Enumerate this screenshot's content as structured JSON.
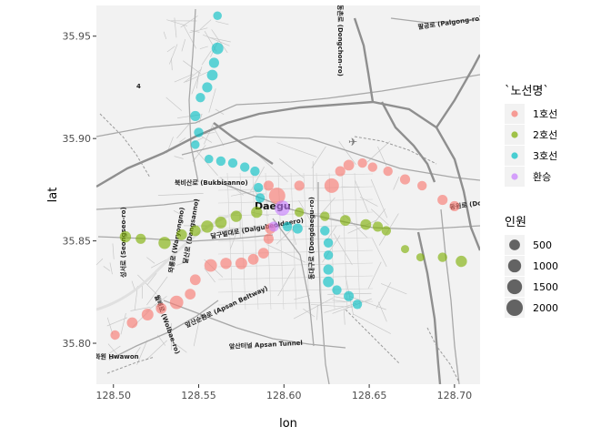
{
  "chart_data": {
    "type": "scatter",
    "xlabel": "lon",
    "ylabel": "lat",
    "xlim": [
      128.49,
      128.715
    ],
    "ylim": [
      35.78,
      35.965
    ],
    "x_ticks": [
      "128.50",
      "128.55",
      "128.60",
      "128.65",
      "128.70"
    ],
    "x_tick_values": [
      128.5,
      128.55,
      128.6,
      128.65,
      128.7
    ],
    "y_ticks": [
      "35.80",
      "35.85",
      "35.90",
      "35.95"
    ],
    "y_tick_values": [
      35.8,
      35.85,
      35.9,
      35.95
    ],
    "grid": false,
    "legend_placement": "right",
    "color_legend": {
      "title": "`노선명`",
      "entries": [
        {
          "label": "1호선",
          "color": "#F8766D"
        },
        {
          "label": "2호선",
          "color": "#7CAE00"
        },
        {
          "label": "3호선",
          "color": "#00BFC4"
        },
        {
          "label": "환승",
          "color": "#C77CFF"
        }
      ]
    },
    "size_legend": {
      "title": "인원",
      "entries": [
        {
          "label": "500",
          "value": 500
        },
        {
          "label": "1000",
          "value": 1000
        },
        {
          "label": "1500",
          "value": 1500
        },
        {
          "label": "2000",
          "value": 2000
        }
      ]
    },
    "series": [
      {
        "name": "1호선",
        "color": "#F8766D",
        "points": [
          {
            "x": 128.501,
            "y": 35.804,
            "v": 300
          },
          {
            "x": 128.511,
            "y": 35.81,
            "v": 500
          },
          {
            "x": 128.52,
            "y": 35.814,
            "v": 700
          },
          {
            "x": 128.528,
            "y": 35.817,
            "v": 500
          },
          {
            "x": 128.537,
            "y": 35.82,
            "v": 1100
          },
          {
            "x": 128.545,
            "y": 35.824,
            "v": 500
          },
          {
            "x": 128.548,
            "y": 35.831,
            "v": 500
          },
          {
            "x": 128.557,
            "y": 35.838,
            "v": 900
          },
          {
            "x": 128.566,
            "y": 35.839,
            "v": 600
          },
          {
            "x": 128.575,
            "y": 35.839,
            "v": 700
          },
          {
            "x": 128.582,
            "y": 35.841,
            "v": 500
          },
          {
            "x": 128.588,
            "y": 35.844,
            "v": 500
          },
          {
            "x": 128.591,
            "y": 35.851,
            "v": 400
          },
          {
            "x": 128.592,
            "y": 35.856,
            "v": 500
          },
          {
            "x": 128.596,
            "y": 35.872,
            "v": 2000
          },
          {
            "x": 128.591,
            "y": 35.877,
            "v": 400
          },
          {
            "x": 128.609,
            "y": 35.877,
            "v": 400
          },
          {
            "x": 128.628,
            "y": 35.877,
            "v": 1400
          },
          {
            "x": 128.633,
            "y": 35.884,
            "v": 400
          },
          {
            "x": 128.638,
            "y": 35.887,
            "v": 500
          },
          {
            "x": 128.646,
            "y": 35.888,
            "v": 300
          },
          {
            "x": 128.652,
            "y": 35.886,
            "v": 300
          },
          {
            "x": 128.661,
            "y": 35.884,
            "v": 300
          },
          {
            "x": 128.671,
            "y": 35.88,
            "v": 400
          },
          {
            "x": 128.681,
            "y": 35.877,
            "v": 300
          },
          {
            "x": 128.693,
            "y": 35.87,
            "v": 400
          },
          {
            "x": 128.7,
            "y": 35.867,
            "v": 400
          }
        ]
      },
      {
        "name": "2호선",
        "color": "#7CAE00",
        "points": [
          {
            "x": 128.507,
            "y": 35.852,
            "v": 600
          },
          {
            "x": 128.516,
            "y": 35.851,
            "v": 400
          },
          {
            "x": 128.53,
            "y": 35.849,
            "v": 800
          },
          {
            "x": 128.54,
            "y": 35.853,
            "v": 500
          },
          {
            "x": 128.548,
            "y": 35.855,
            "v": 500
          },
          {
            "x": 128.555,
            "y": 35.857,
            "v": 800
          },
          {
            "x": 128.563,
            "y": 35.859,
            "v": 700
          },
          {
            "x": 128.572,
            "y": 35.862,
            "v": 600
          },
          {
            "x": 128.584,
            "y": 35.864,
            "v": 600
          },
          {
            "x": 128.609,
            "y": 35.864,
            "v": 300
          },
          {
            "x": 128.624,
            "y": 35.862,
            "v": 300
          },
          {
            "x": 128.636,
            "y": 35.86,
            "v": 500
          },
          {
            "x": 128.648,
            "y": 35.858,
            "v": 500
          },
          {
            "x": 128.655,
            "y": 35.857,
            "v": 400
          },
          {
            "x": 128.66,
            "y": 35.855,
            "v": 300
          },
          {
            "x": 128.671,
            "y": 35.846,
            "v": 150
          },
          {
            "x": 128.68,
            "y": 35.842,
            "v": 150
          },
          {
            "x": 128.693,
            "y": 35.842,
            "v": 300
          },
          {
            "x": 128.704,
            "y": 35.84,
            "v": 600
          }
        ]
      },
      {
        "name": "3호선",
        "color": "#00BFC4",
        "points": [
          {
            "x": 128.561,
            "y": 35.96,
            "v": 200
          },
          {
            "x": 128.561,
            "y": 35.944,
            "v": 700
          },
          {
            "x": 128.559,
            "y": 35.937,
            "v": 400
          },
          {
            "x": 128.558,
            "y": 35.931,
            "v": 500
          },
          {
            "x": 128.555,
            "y": 35.925,
            "v": 400
          },
          {
            "x": 128.551,
            "y": 35.92,
            "v": 300
          },
          {
            "x": 128.548,
            "y": 35.911,
            "v": 400
          },
          {
            "x": 128.55,
            "y": 35.903,
            "v": 300
          },
          {
            "x": 128.548,
            "y": 35.897,
            "v": 200
          },
          {
            "x": 128.556,
            "y": 35.89,
            "v": 200
          },
          {
            "x": 128.563,
            "y": 35.889,
            "v": 300
          },
          {
            "x": 128.57,
            "y": 35.888,
            "v": 300
          },
          {
            "x": 128.577,
            "y": 35.886,
            "v": 300
          },
          {
            "x": 128.583,
            "y": 35.884,
            "v": 300
          },
          {
            "x": 128.585,
            "y": 35.876,
            "v": 300
          },
          {
            "x": 128.586,
            "y": 35.871,
            "v": 300
          },
          {
            "x": 128.602,
            "y": 35.857,
            "v": 300
          },
          {
            "x": 128.608,
            "y": 35.856,
            "v": 400
          },
          {
            "x": 128.624,
            "y": 35.855,
            "v": 300
          },
          {
            "x": 128.626,
            "y": 35.849,
            "v": 300
          },
          {
            "x": 128.626,
            "y": 35.843,
            "v": 300
          },
          {
            "x": 128.626,
            "y": 35.836,
            "v": 400
          },
          {
            "x": 128.626,
            "y": 35.83,
            "v": 500
          },
          {
            "x": 128.631,
            "y": 35.826,
            "v": 300
          },
          {
            "x": 128.638,
            "y": 35.823,
            "v": 400
          },
          {
            "x": 128.643,
            "y": 35.819,
            "v": 300
          }
        ]
      },
      {
        "name": "환승",
        "color": "#C77CFF",
        "points": [
          {
            "x": 128.599,
            "y": 35.866,
            "v": 1600
          },
          {
            "x": 128.594,
            "y": 35.857,
            "v": 400
          }
        ]
      }
    ]
  },
  "map": {
    "city_label": "Daegu",
    "road_labels": [
      "북비산로 (Bukbisanno)",
      "팔공로 (Palgong-ro)",
      "와룡로 (Waryongno)",
      "달산로 (Dangsanno)",
      "달구벌대로 (Dalgubeoldaero)",
      "동대구로 (Dongdaegu-ro)",
      "동원로 (Dongwonno)",
      "앞산순환로 (Apsan Beltway)",
      "앞산터널 Apsan Tunnel",
      "성서로 (Seongseo-ro)",
      "화원 Hwawon",
      "월배로 (Wolbae-ro)",
      "범어로",
      "팔달로 (Paldal-ro)",
      "비산로",
      "도청로",
      "동촌로 (Dongchon-ro)",
      "4"
    ]
  }
}
